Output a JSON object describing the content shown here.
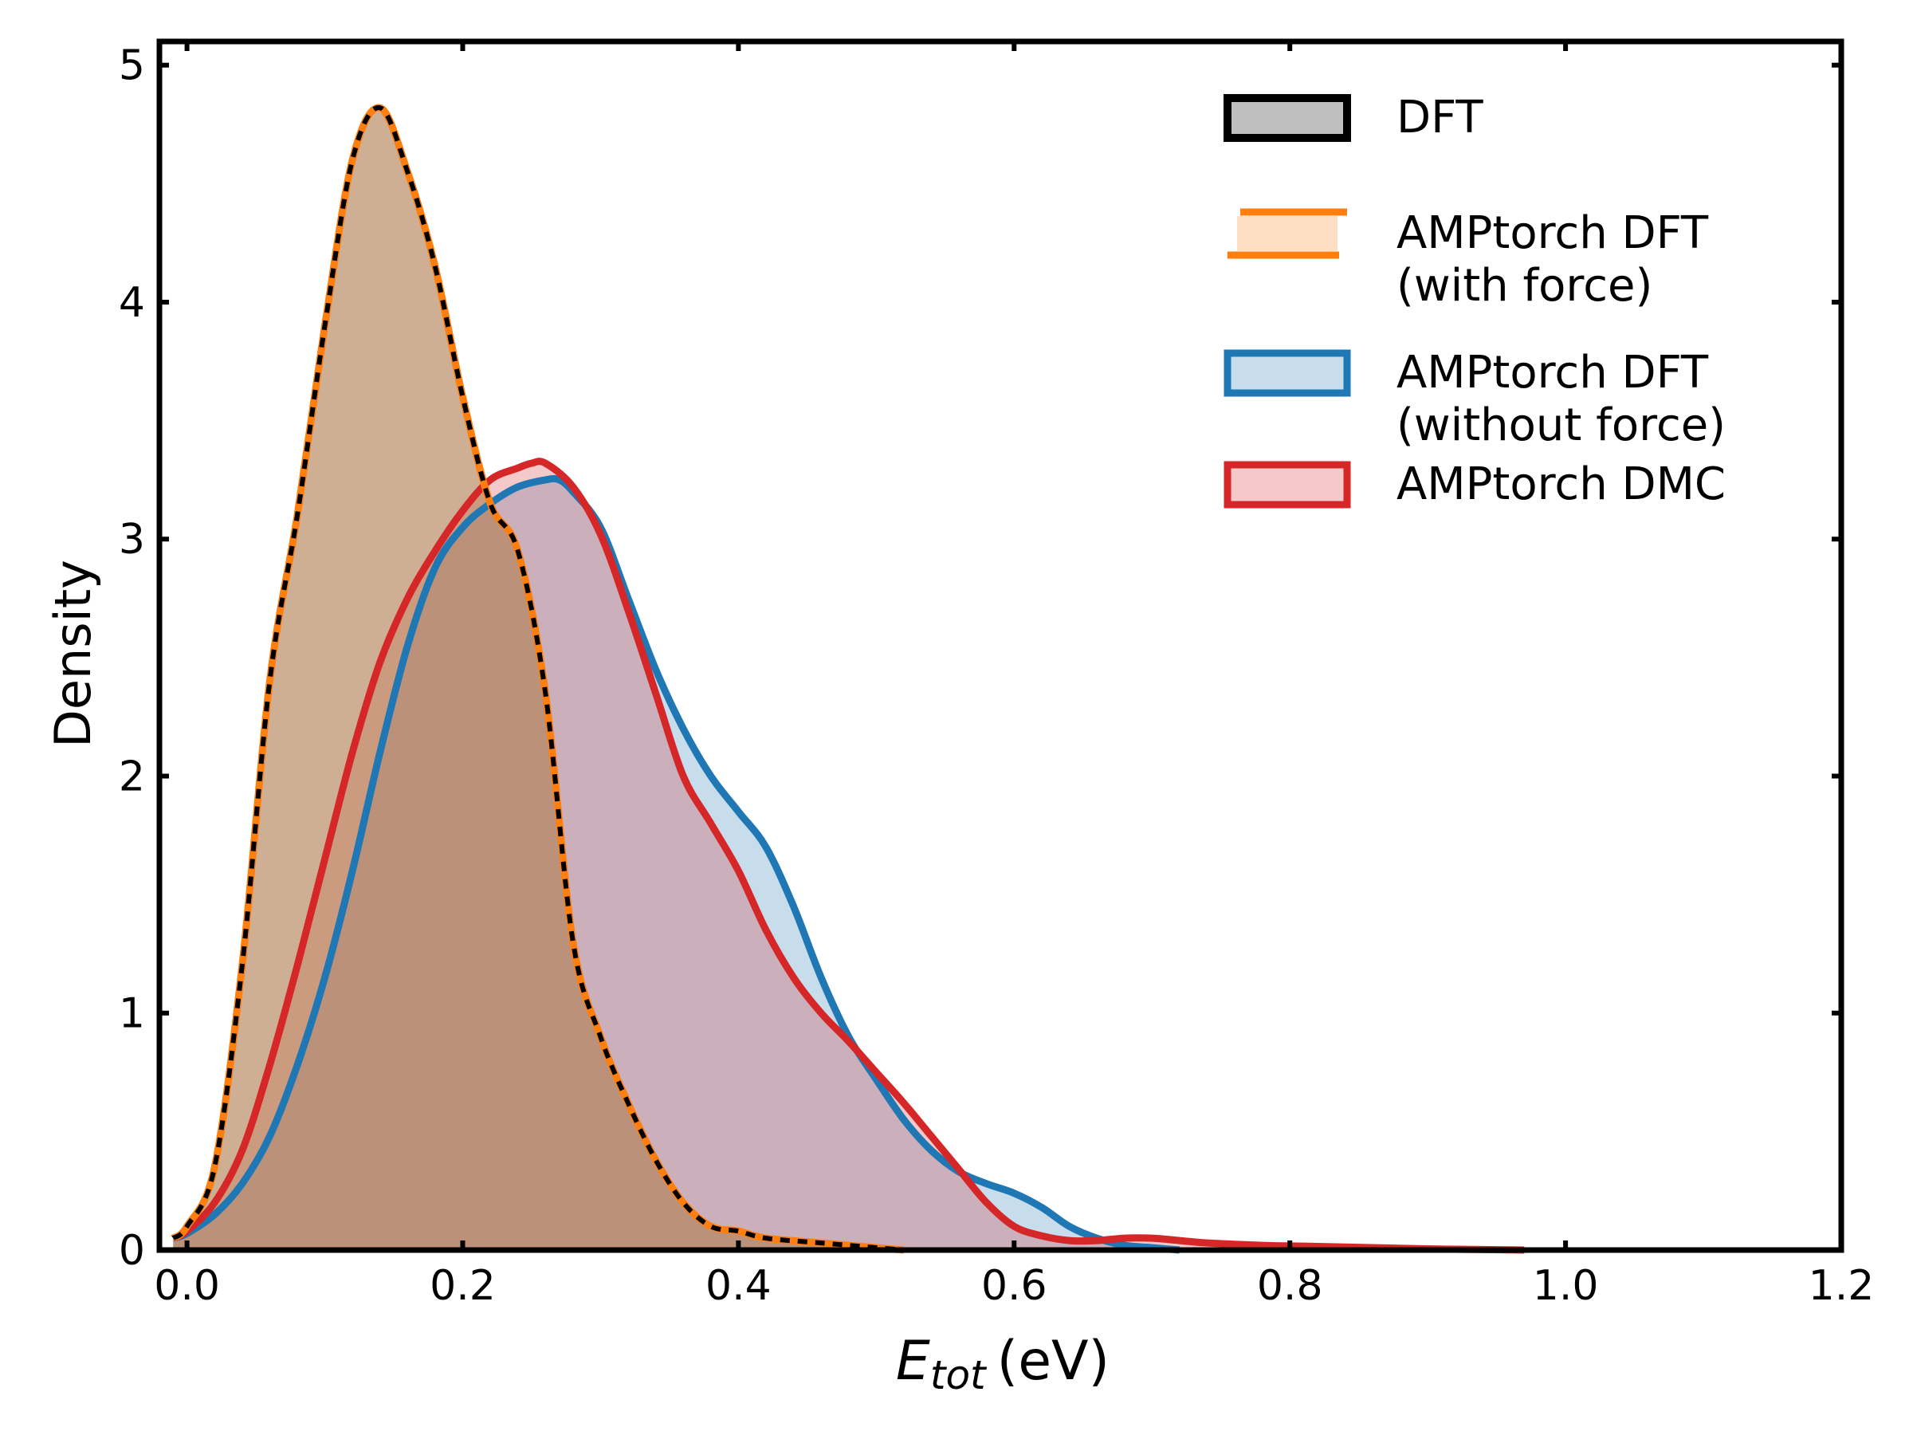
{
  "chart_data": {
    "type": "area",
    "title": "",
    "xlabel_main": "E",
    "xlabel_sub": "tot",
    "xlabel_unit": "(eV)",
    "ylabel": "Density",
    "xlim": [
      -0.02,
      1.2
    ],
    "ylim": [
      0,
      5.1
    ],
    "xticks": [
      0.0,
      0.2,
      0.4,
      0.6,
      0.8,
      1.0,
      1.2
    ],
    "xtick_labels": [
      "0.0",
      "0.2",
      "0.4",
      "0.6",
      "0.8",
      "1.0",
      "1.2"
    ],
    "yticks": [
      0,
      1,
      2,
      3,
      4,
      5
    ],
    "ytick_labels": [
      "0",
      "1",
      "2",
      "3",
      "4",
      "5"
    ],
    "grid": false,
    "legend_position": "top-right",
    "series": [
      {
        "name": "DFT",
        "label_lines": [
          "DFT"
        ],
        "line_color": "#000000",
        "fill_color": "#808080",
        "fill_opacity": 0.5,
        "dashed": true,
        "legend_style": "box",
        "x": [
          -0.01,
          0.0,
          0.02,
          0.04,
          0.06,
          0.08,
          0.1,
          0.12,
          0.14,
          0.16,
          0.18,
          0.2,
          0.22,
          0.24,
          0.26,
          0.28,
          0.3,
          0.32,
          0.34,
          0.36,
          0.38,
          0.4,
          0.42,
          0.46,
          0.5,
          0.52
        ],
        "y": [
          0.05,
          0.1,
          0.35,
          1.2,
          2.4,
          3.1,
          3.9,
          4.6,
          4.82,
          4.55,
          4.15,
          3.6,
          3.15,
          2.95,
          2.35,
          1.3,
          0.9,
          0.62,
          0.38,
          0.2,
          0.1,
          0.08,
          0.05,
          0.03,
          0.01,
          0.0
        ]
      },
      {
        "name": "AMPtorch DFT (with force)",
        "label_lines": [
          "AMPtorch DFT",
          "(with force)"
        ],
        "line_color": "#ff7f0e",
        "fill_color": "#ff7f0e",
        "fill_opacity": 0.25,
        "dashed": false,
        "legend_style": "hbars",
        "x": [
          -0.01,
          0.0,
          0.02,
          0.04,
          0.06,
          0.08,
          0.1,
          0.12,
          0.14,
          0.16,
          0.18,
          0.2,
          0.22,
          0.24,
          0.26,
          0.28,
          0.3,
          0.32,
          0.34,
          0.36,
          0.38,
          0.4,
          0.42,
          0.46,
          0.5,
          0.52
        ],
        "y": [
          0.05,
          0.1,
          0.35,
          1.2,
          2.4,
          3.1,
          3.9,
          4.6,
          4.82,
          4.55,
          4.15,
          3.6,
          3.15,
          2.95,
          2.35,
          1.3,
          0.9,
          0.62,
          0.38,
          0.2,
          0.1,
          0.08,
          0.05,
          0.03,
          0.01,
          0.0
        ]
      },
      {
        "name": "AMPtorch DFT (without force)",
        "label_lines": [
          "AMPtorch DFT",
          "(without force)"
        ],
        "line_color": "#1f77b4",
        "fill_color": "#1f77b4",
        "fill_opacity": 0.25,
        "dashed": false,
        "legend_style": "box",
        "x": [
          -0.01,
          0.0,
          0.02,
          0.04,
          0.06,
          0.08,
          0.1,
          0.12,
          0.14,
          0.16,
          0.18,
          0.2,
          0.22,
          0.24,
          0.26,
          0.27,
          0.28,
          0.3,
          0.32,
          0.34,
          0.36,
          0.38,
          0.4,
          0.42,
          0.44,
          0.46,
          0.48,
          0.5,
          0.52,
          0.54,
          0.56,
          0.58,
          0.6,
          0.62,
          0.64,
          0.66,
          0.68,
          0.7,
          0.72
        ],
        "y": [
          0.05,
          0.07,
          0.15,
          0.28,
          0.48,
          0.78,
          1.15,
          1.6,
          2.1,
          2.55,
          2.88,
          3.05,
          3.15,
          3.22,
          3.25,
          3.25,
          3.2,
          3.05,
          2.75,
          2.45,
          2.2,
          2.0,
          1.85,
          1.7,
          1.45,
          1.15,
          0.9,
          0.72,
          0.55,
          0.42,
          0.33,
          0.28,
          0.24,
          0.18,
          0.1,
          0.05,
          0.02,
          0.01,
          0.0
        ]
      },
      {
        "name": "AMPtorch DMC",
        "label_lines": [
          "AMPtorch DMC"
        ],
        "line_color": "#d62728",
        "fill_color": "#d62728",
        "fill_opacity": 0.25,
        "dashed": false,
        "legend_style": "box",
        "x": [
          -0.01,
          0.0,
          0.02,
          0.04,
          0.06,
          0.08,
          0.1,
          0.12,
          0.14,
          0.16,
          0.18,
          0.2,
          0.22,
          0.24,
          0.25,
          0.26,
          0.28,
          0.3,
          0.32,
          0.34,
          0.36,
          0.38,
          0.4,
          0.42,
          0.44,
          0.46,
          0.48,
          0.5,
          0.52,
          0.54,
          0.56,
          0.58,
          0.6,
          0.62,
          0.64,
          0.66,
          0.68,
          0.7,
          0.72,
          0.74,
          0.78,
          0.82,
          0.86,
          0.9,
          0.94,
          0.97
        ],
        "y": [
          0.05,
          0.08,
          0.2,
          0.42,
          0.78,
          1.2,
          1.65,
          2.1,
          2.48,
          2.75,
          2.95,
          3.12,
          3.25,
          3.3,
          3.32,
          3.32,
          3.22,
          3.02,
          2.7,
          2.35,
          2.0,
          1.8,
          1.6,
          1.35,
          1.15,
          1.0,
          0.88,
          0.75,
          0.62,
          0.48,
          0.34,
          0.2,
          0.1,
          0.06,
          0.04,
          0.04,
          0.05,
          0.05,
          0.04,
          0.03,
          0.02,
          0.015,
          0.01,
          0.005,
          0.002,
          0.0
        ]
      }
    ]
  }
}
